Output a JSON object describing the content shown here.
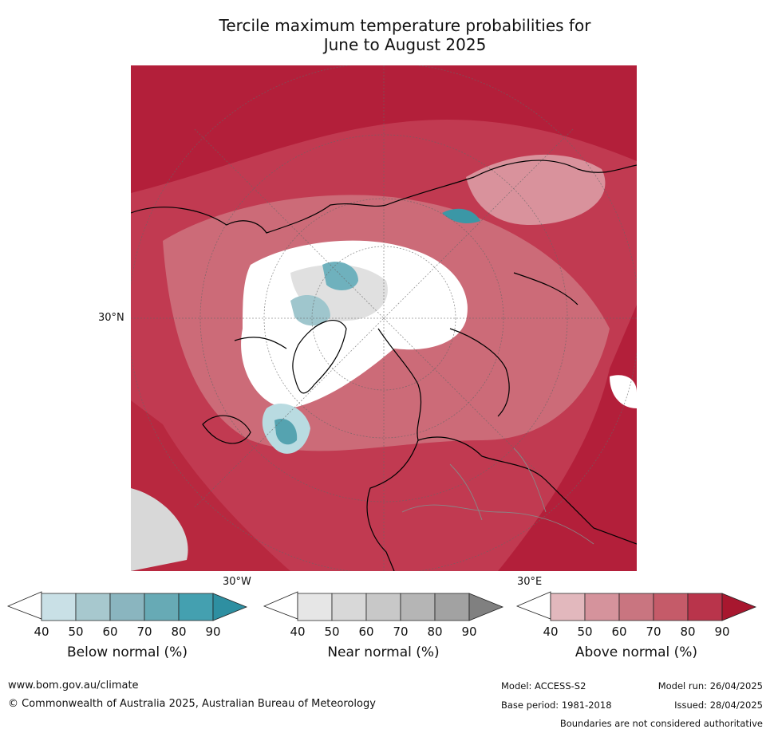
{
  "title_line1": "Tercile maximum temperature probabilities for",
  "title_line2": "June to August 2025",
  "map": {
    "lat_label": "30°N",
    "lon_label_west": "30°W",
    "lon_label_east": "30°E"
  },
  "colorbars": [
    {
      "id": "below",
      "label": "Below normal (%)",
      "ticks": [
        "40",
        "50",
        "60",
        "70",
        "80",
        "90"
      ],
      "colors": [
        "#ffffff",
        "#c9e0e6",
        "#a7c8ce",
        "#8ab5bf",
        "#67aab5",
        "#44a0b0",
        "#2e8fa1"
      ]
    },
    {
      "id": "near",
      "label": "Near normal (%)",
      "ticks": [
        "40",
        "50",
        "60",
        "70",
        "80",
        "90"
      ],
      "colors": [
        "#ffffff",
        "#e6e6e6",
        "#d8d8d8",
        "#c8c8c8",
        "#b5b5b5",
        "#a2a2a2",
        "#808080"
      ]
    },
    {
      "id": "above",
      "label": "Above normal (%)",
      "ticks": [
        "40",
        "50",
        "60",
        "70",
        "80",
        "90"
      ],
      "colors": [
        "#ffffff",
        "#e2b8bd",
        "#d5939c",
        "#c97580",
        "#c55b69",
        "#b9344b",
        "#a8172f"
      ]
    }
  ],
  "footer": {
    "website": "www.bom.gov.au/climate",
    "copyright": "© Commonwealth of Australia 2025, Australian Bureau of Meteorology",
    "model": "Model: ACCESS-S2",
    "model_run": "Model run: 26/04/2025",
    "base_period": "Base period: 1981-2018",
    "issued": "Issued: 28/04/2025",
    "disclaimer": "Boundaries are not considered authoritative"
  }
}
